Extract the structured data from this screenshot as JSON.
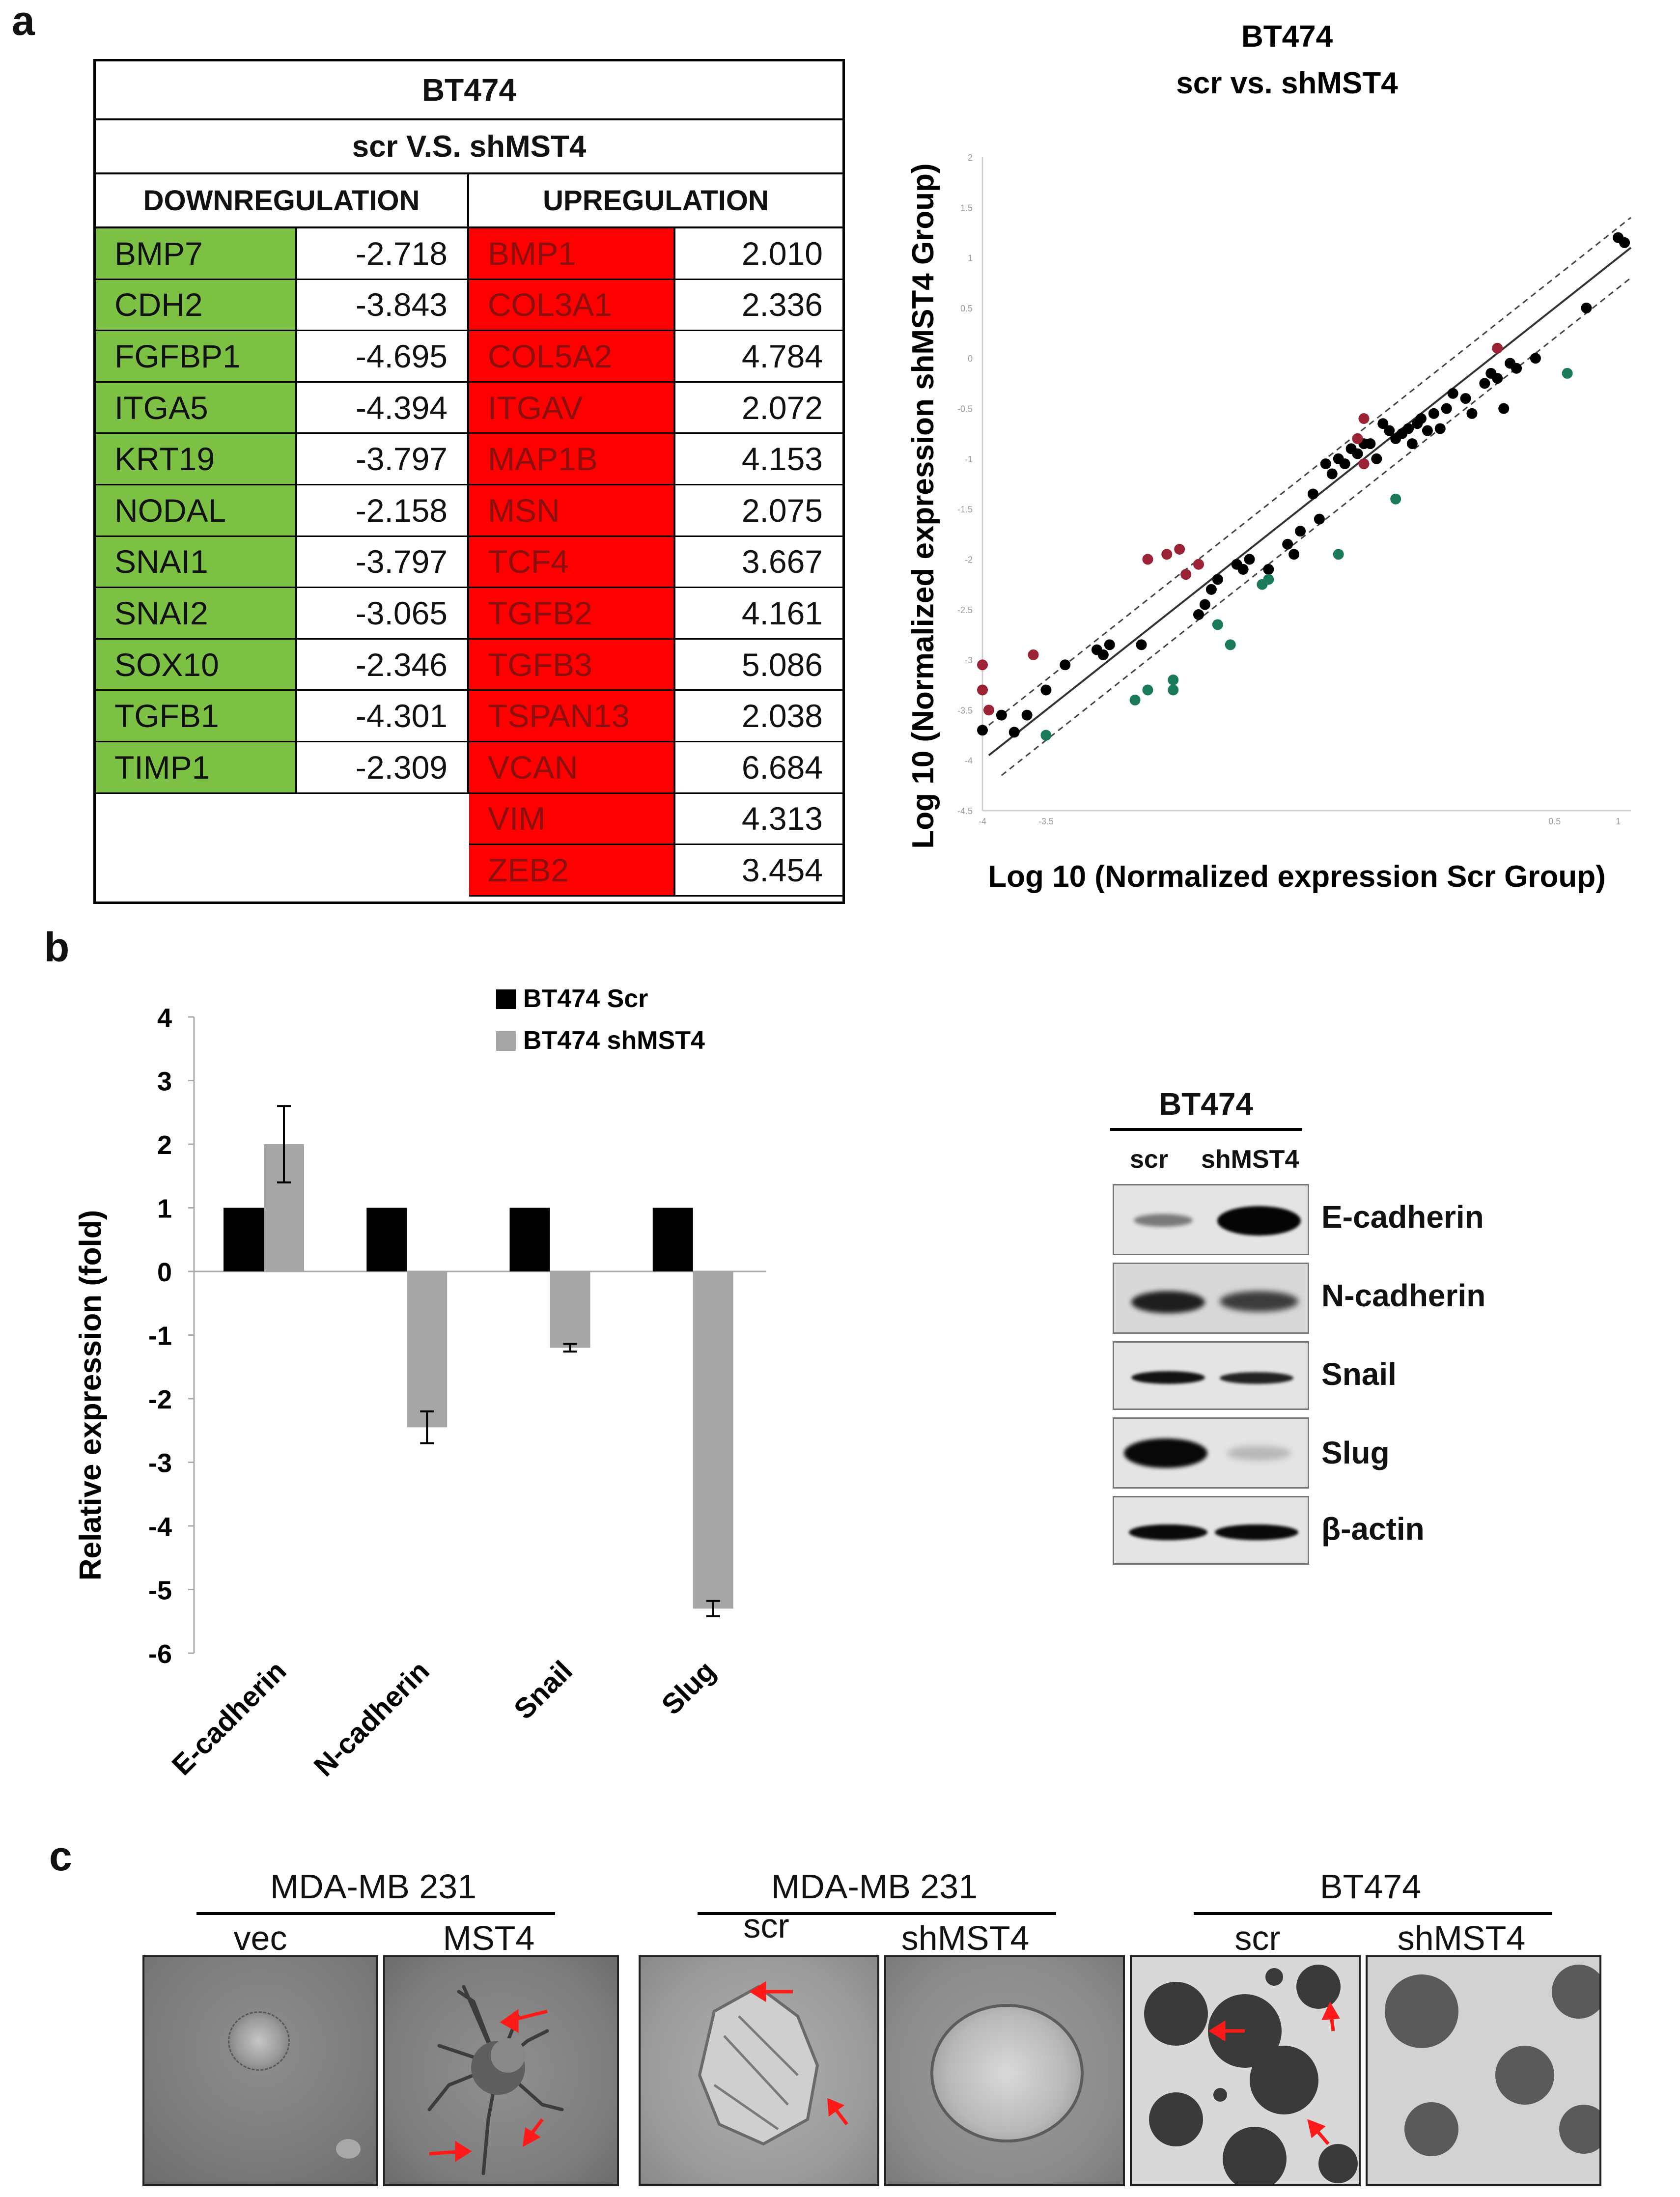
{
  "panel_labels": {
    "a": "a",
    "b": "b",
    "c": "c"
  },
  "panel_a_table": {
    "title": "BT474",
    "subtitle": "scr V.S. shMST4",
    "downregulation_header": "DOWNREGULATION",
    "upregulation_header": "UPREGULATION",
    "downregulation": [
      {
        "gene": "BMP7",
        "value": "-2.718"
      },
      {
        "gene": "CDH2",
        "value": "-3.843"
      },
      {
        "gene": "FGFBP1",
        "value": "-4.695"
      },
      {
        "gene": "ITGA5",
        "value": "-4.394"
      },
      {
        "gene": "KRT19",
        "value": "-3.797"
      },
      {
        "gene": "NODAL",
        "value": "-2.158"
      },
      {
        "gene": "SNAI1",
        "value": "-3.797"
      },
      {
        "gene": "SNAI2",
        "value": "-3.065"
      },
      {
        "gene": "SOX10",
        "value": "-2.346"
      },
      {
        "gene": "TGFB1",
        "value": "-4.301"
      },
      {
        "gene": "TIMP1",
        "value": "-2.309"
      }
    ],
    "upregulation": [
      {
        "gene": "BMP1",
        "value": "2.010"
      },
      {
        "gene": "COL3A1",
        "value": "2.336"
      },
      {
        "gene": "COL5A2",
        "value": "4.784"
      },
      {
        "gene": "ITGAV",
        "value": "2.072"
      },
      {
        "gene": "MAP1B",
        "value": "4.153"
      },
      {
        "gene": "MSN",
        "value": "2.075"
      },
      {
        "gene": "TCF4",
        "value": "3.667"
      },
      {
        "gene": "TGFB2",
        "value": "4.161"
      },
      {
        "gene": "TGFB3",
        "value": "5.086"
      },
      {
        "gene": "TSPAN13",
        "value": "2.038"
      },
      {
        "gene": "VCAN",
        "value": "6.684"
      },
      {
        "gene": "VIM",
        "value": "4.313"
      },
      {
        "gene": "ZEB2",
        "value": "3.454"
      }
    ]
  },
  "chart_data": [
    {
      "type": "scatter",
      "title": "BT474",
      "subtitle": "scr vs. shMST4",
      "xlabel": "Log 10 (Normalized expression Scr Group)",
      "ylabel": "Log 10 (Normalized expression shMST4 Group)",
      "xlim": [
        -4,
        1.1
      ],
      "ylim": [
        -4.5,
        2
      ],
      "yticks": [
        "2",
        "1.5",
        "1",
        "0.5",
        "0",
        "-0.5",
        "-1",
        "-1.5",
        "-2",
        "-2.5",
        "-3",
        "-3.5",
        "-4",
        "-4.5"
      ],
      "xticks": [
        "-4",
        "-3.5",
        "0.5",
        "1"
      ],
      "fold_change_boundary": 0.3,
      "series": [
        {
          "name": "unchanged",
          "color": "#000000",
          "points": [
            [
              -4,
              -3.7
            ],
            [
              -3.85,
              -3.55
            ],
            [
              -3.75,
              -3.72
            ],
            [
              -3.65,
              -3.55
            ],
            [
              -3.5,
              -3.3
            ],
            [
              -3.35,
              -3.05
            ],
            [
              -3.1,
              -2.9
            ],
            [
              -3.05,
              -2.95
            ],
            [
              -3.0,
              -2.85
            ],
            [
              -2.75,
              -2.85
            ],
            [
              -2.3,
              -2.55
            ],
            [
              -2.25,
              -2.45
            ],
            [
              -2.2,
              -2.3
            ],
            [
              -2.15,
              -2.2
            ],
            [
              -2.0,
              -2.05
            ],
            [
              -1.95,
              -2.1
            ],
            [
              -1.9,
              -2.0
            ],
            [
              -1.75,
              -2.1
            ],
            [
              -1.6,
              -1.85
            ],
            [
              -1.55,
              -1.95
            ],
            [
              -1.5,
              -1.72
            ],
            [
              -1.4,
              -1.35
            ],
            [
              -1.35,
              -1.6
            ],
            [
              -1.3,
              -1.05
            ],
            [
              -1.25,
              -1.15
            ],
            [
              -1.2,
              -1.0
            ],
            [
              -1.15,
              -1.05
            ],
            [
              -1.1,
              -0.9
            ],
            [
              -1.05,
              -0.95
            ],
            [
              -1.0,
              -0.85
            ],
            [
              -0.95,
              -0.85
            ],
            [
              -0.9,
              -1.0
            ],
            [
              -0.85,
              -0.65
            ],
            [
              -0.8,
              -0.72
            ],
            [
              -0.75,
              -0.8
            ],
            [
              -0.7,
              -0.75
            ],
            [
              -0.65,
              -0.7
            ],
            [
              -0.62,
              -0.85
            ],
            [
              -0.58,
              -0.65
            ],
            [
              -0.55,
              -0.6
            ],
            [
              -0.5,
              -0.72
            ],
            [
              -0.45,
              -0.55
            ],
            [
              -0.4,
              -0.7
            ],
            [
              -0.35,
              -0.5
            ],
            [
              -0.3,
              -0.35
            ],
            [
              -0.2,
              -0.4
            ],
            [
              -0.15,
              -0.55
            ],
            [
              -0.05,
              -0.25
            ],
            [
              0.0,
              -0.15
            ],
            [
              0.05,
              -0.2
            ],
            [
              0.1,
              -0.5
            ],
            [
              0.15,
              -0.05
            ],
            [
              0.2,
              -0.1
            ],
            [
              0.35,
              0.0
            ],
            [
              0.75,
              0.5
            ],
            [
              1.0,
              1.2
            ],
            [
              1.05,
              1.15
            ]
          ]
        },
        {
          "name": "upregulated",
          "color": "#9b2335",
          "points": [
            [
              -4,
              -3.05
            ],
            [
              -4,
              -3.3
            ],
            [
              -3.95,
              -3.5
            ],
            [
              -3.6,
              -2.95
            ],
            [
              -2.7,
              -2.0
            ],
            [
              -2.55,
              -1.95
            ],
            [
              -2.45,
              -1.9
            ],
            [
              -2.4,
              -2.15
            ],
            [
              -2.3,
              -2.05
            ],
            [
              -1.05,
              -0.8
            ],
            [
              -1.0,
              -0.6
            ],
            [
              -1.0,
              -1.05
            ],
            [
              0.05,
              0.1
            ]
          ]
        },
        {
          "name": "downregulated",
          "color": "#1a7a5a",
          "points": [
            [
              -3.5,
              -3.75
            ],
            [
              -2.8,
              -3.4
            ],
            [
              -2.7,
              -3.3
            ],
            [
              -2.5,
              -3.2
            ],
            [
              -2.5,
              -3.3
            ],
            [
              -2.15,
              -2.65
            ],
            [
              -2.05,
              -2.85
            ],
            [
              -1.8,
              -2.25
            ],
            [
              -1.75,
              -2.2
            ],
            [
              -1.2,
              -1.95
            ],
            [
              -0.75,
              -1.4
            ],
            [
              0.6,
              -0.15
            ]
          ]
        }
      ]
    },
    {
      "type": "bar",
      "ylabel": "Relative expression (fold)",
      "ylim": [
        -6,
        4
      ],
      "yticks": [
        "4",
        "3",
        "2",
        "1",
        "0",
        "-1",
        "-2",
        "-3",
        "-4",
        "-5",
        "-6"
      ],
      "categories": [
        "E-cadherin",
        "N-cadherin",
        "Snail",
        "Slug"
      ],
      "series": [
        {
          "name": "BT474 Scr",
          "color": "#000000",
          "values": [
            1,
            1,
            1,
            1
          ],
          "errors": [
            0,
            0,
            0,
            0
          ]
        },
        {
          "name": "BT474 shMST4",
          "color": "#a6a6a6",
          "values": [
            2.0,
            -2.45,
            -1.2,
            -5.3
          ],
          "errors": [
            0.6,
            0.25,
            0.06,
            0.12
          ]
        }
      ]
    }
  ],
  "panel_b_blot": {
    "title": "BT474",
    "lanes": [
      "scr",
      "shMST4"
    ],
    "rows": [
      "E-cadherin",
      "N-cadherin",
      "Snail",
      "Slug",
      "β-actin"
    ]
  },
  "panel_c": {
    "groups": [
      {
        "title": "MDA-MB 231",
        "left": "vec",
        "right": "MST4"
      },
      {
        "title": "MDA-MB 231",
        "left": "scr",
        "right": "shMST4"
      },
      {
        "title": "BT474",
        "left": "scr",
        "right": "shMST4"
      }
    ]
  }
}
